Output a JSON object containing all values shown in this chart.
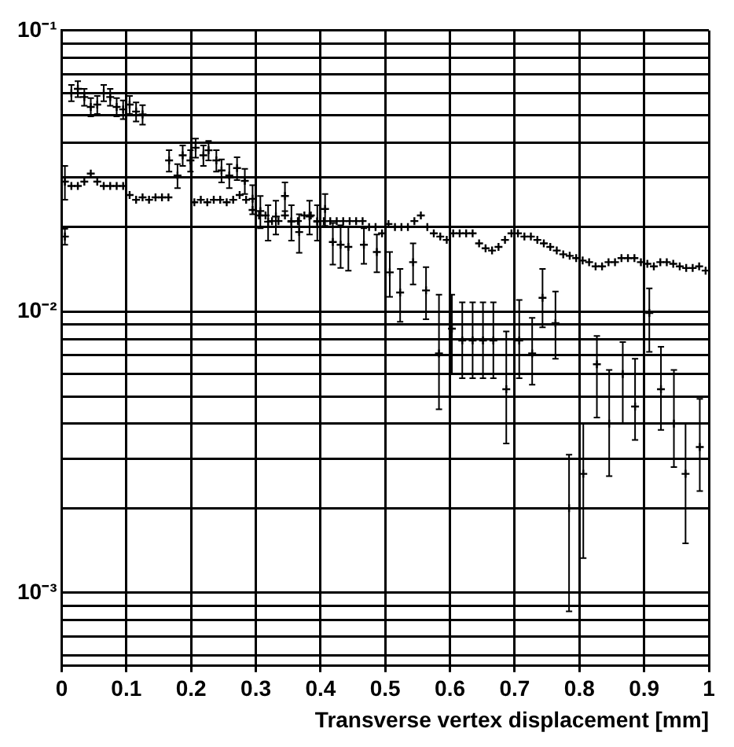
{
  "chart_data": {
    "type": "scatter",
    "xlabel": "Transverse vertex displacement [mm]",
    "xlim": [
      0,
      1
    ],
    "xticks": [
      0,
      0.1,
      0.2,
      0.3,
      0.4,
      0.5,
      0.6,
      0.7,
      0.8,
      0.9,
      1
    ],
    "ylim": [
      0.00055,
      0.1
    ],
    "log": "y",
    "yticks": [
      {
        "value": 0.0006,
        "label": null
      },
      {
        "value": 0.0007,
        "label": null
      },
      {
        "value": 0.0008,
        "label": null
      },
      {
        "value": 0.0009,
        "label": null
      },
      {
        "value": 0.001,
        "label": "10⁻³"
      },
      {
        "value": 0.002,
        "label": null
      },
      {
        "value": 0.003,
        "label": null
      },
      {
        "value": 0.004,
        "label": null
      },
      {
        "value": 0.005,
        "label": null
      },
      {
        "value": 0.006,
        "label": null
      },
      {
        "value": 0.007,
        "label": null
      },
      {
        "value": 0.008,
        "label": null
      },
      {
        "value": 0.009,
        "label": null
      },
      {
        "value": 0.01,
        "label": "10⁻²"
      },
      {
        "value": 0.02,
        "label": null
      },
      {
        "value": 0.03,
        "label": null
      },
      {
        "value": 0.04,
        "label": null
      },
      {
        "value": 0.05,
        "label": null
      },
      {
        "value": 0.06,
        "label": null
      },
      {
        "value": 0.07,
        "label": null
      },
      {
        "value": 0.08,
        "label": null
      },
      {
        "value": 0.09,
        "label": null
      },
      {
        "value": 0.1,
        "label": "10⁻¹"
      }
    ],
    "grid": true,
    "legend": false,
    "marker": "cross",
    "series": [
      {
        "color": "#000000",
        "x": [
          0.005,
          0.015,
          0.025,
          0.035,
          0.045,
          0.055,
          0.065,
          0.075,
          0.085,
          0.095,
          0.105,
          0.115,
          0.125,
          0.135,
          0.145,
          0.155,
          0.165,
          0.205,
          0.215,
          0.225,
          0.235,
          0.245,
          0.255,
          0.265,
          0.275,
          0.285,
          0.295,
          0.305,
          0.315,
          0.325,
          0.335,
          0.345,
          0.355,
          0.365,
          0.375,
          0.385,
          0.395,
          0.405,
          0.415,
          0.425,
          0.435,
          0.445,
          0.455,
          0.465,
          0.475,
          0.485,
          0.495,
          0.505,
          0.515,
          0.525,
          0.535,
          0.545,
          0.555,
          0.565,
          0.575,
          0.585,
          0.595,
          0.605,
          0.615,
          0.625,
          0.635,
          0.645,
          0.655,
          0.665,
          0.675,
          0.685,
          0.695,
          0.705,
          0.715,
          0.725,
          0.735,
          0.745,
          0.755,
          0.765,
          0.775,
          0.785,
          0.795,
          0.805,
          0.815,
          0.825,
          0.835,
          0.845,
          0.855,
          0.865,
          0.875,
          0.885,
          0.895,
          0.905,
          0.915,
          0.925,
          0.935,
          0.945,
          0.955,
          0.965,
          0.975,
          0.985,
          0.995
        ],
        "values": [
          0.029,
          0.028,
          0.028,
          0.029,
          0.031,
          0.029,
          0.028,
          0.028,
          0.028,
          0.028,
          0.026,
          0.025,
          0.0255,
          0.025,
          0.0255,
          0.0255,
          0.0255,
          0.0245,
          0.025,
          0.0245,
          0.025,
          0.025,
          0.0245,
          0.025,
          0.026,
          0.025,
          0.023,
          0.022,
          0.022,
          0.021,
          0.021,
          0.022,
          0.021,
          0.021,
          0.022,
          0.022,
          0.021,
          0.021,
          0.021,
          0.021,
          0.021,
          0.021,
          0.021,
          0.021,
          0.02,
          0.02,
          0.019,
          0.0205,
          0.02,
          0.02,
          0.02,
          0.021,
          0.022,
          0.02,
          0.019,
          0.0185,
          0.018,
          0.019,
          0.019,
          0.019,
          0.019,
          0.0175,
          0.0168,
          0.0165,
          0.017,
          0.018,
          0.019,
          0.019,
          0.0185,
          0.0185,
          0.018,
          0.0175,
          0.017,
          0.0165,
          0.016,
          0.0158,
          0.0155,
          0.0152,
          0.015,
          0.0145,
          0.0145,
          0.015,
          0.015,
          0.0155,
          0.0155,
          0.0155,
          0.015,
          0.0148,
          0.0145,
          0.015,
          0.015,
          0.0148,
          0.0145,
          0.0143,
          0.0143,
          0.0145,
          0.014
        ],
        "errors": [
          0.004,
          null,
          null,
          null,
          null,
          null,
          null,
          null,
          null,
          null,
          null,
          null,
          null,
          null,
          null,
          null,
          null,
          null,
          null,
          null,
          null,
          null,
          null,
          null,
          null,
          null,
          null,
          null,
          null,
          null,
          null,
          null,
          null,
          null,
          null,
          null,
          null,
          null,
          null,
          null,
          null,
          null,
          null,
          null,
          null,
          null,
          null,
          null,
          null,
          null,
          null,
          null,
          null,
          null,
          null,
          null,
          null,
          null,
          null,
          null,
          null,
          null,
          null,
          null,
          null,
          null,
          null,
          null,
          null,
          null,
          null,
          null,
          null,
          null,
          null,
          null,
          null,
          null,
          null,
          null,
          null,
          null,
          null,
          null,
          null,
          null,
          null,
          null,
          null,
          null,
          null,
          null,
          null,
          null,
          null,
          null,
          null
        ]
      },
      {
        "color": "#000000",
        "x": [
          0.005,
          0.015,
          0.025,
          0.035,
          0.045,
          0.055,
          0.065,
          0.075,
          0.085,
          0.095,
          0.105,
          0.115,
          0.125,
          0.166,
          0.179,
          0.187,
          0.199,
          0.207,
          0.219,
          0.227,
          0.239,
          0.247,
          0.259,
          0.271,
          0.283,
          0.295,
          0.307,
          0.319,
          0.331,
          0.345,
          0.355,
          0.367,
          0.383,
          0.395,
          0.407,
          0.419,
          0.431,
          0.443,
          0.467,
          0.487,
          0.507,
          0.523,
          0.543,
          0.563,
          0.583,
          0.603,
          0.619,
          0.635,
          0.651,
          0.667,
          0.687,
          0.707,
          0.727,
          0.743,
          0.763,
          0.784,
          0.806,
          0.827,
          0.846,
          0.867,
          0.886,
          0.908,
          0.926,
          0.946,
          0.964,
          0.986
        ],
        "values": [
          0.0185,
          0.06,
          0.062,
          0.058,
          0.0535,
          0.0545,
          0.06,
          0.058,
          0.0535,
          0.0524,
          0.0545,
          0.0515,
          0.0503,
          0.0345,
          0.0305,
          0.036,
          0.0345,
          0.0383,
          0.036,
          0.0375,
          0.0345,
          0.0318,
          0.0305,
          0.0324,
          0.0292,
          0.0252,
          0.0228,
          0.0209,
          0.0218,
          0.0258,
          0.0209,
          0.0192,
          0.0218,
          0.0209,
          0.0232,
          0.0177,
          0.0173,
          0.017,
          0.0173,
          0.0163,
          0.0138,
          0.0117,
          0.015,
          0.0119,
          0.0071,
          0.0087,
          0.0079,
          0.0079,
          0.0079,
          0.0079,
          0.0053,
          0.0079,
          0.0071,
          0.0112,
          0.0091,
          0.002,
          0.00265,
          0.0065,
          0.004,
          0.006,
          0.0046,
          0.0099,
          0.0053,
          0.004,
          0.00265,
          0.0033
        ],
        "errors": [
          0.0012,
          0.004,
          0.004,
          0.004,
          0.004,
          0.004,
          0.004,
          0.004,
          0.004,
          0.004,
          0.004,
          0.004,
          0.004,
          0.003,
          0.003,
          0.003,
          0.003,
          0.003,
          0.003,
          0.003,
          0.003,
          0.003,
          0.003,
          0.003,
          0.003,
          0.003,
          0.003,
          0.003,
          0.003,
          0.003,
          0.003,
          0.003,
          0.003,
          0.003,
          0.003,
          0.003,
          0.003,
          0.003,
          0.0025,
          0.0025,
          0.0025,
          0.0025,
          0.0025,
          0.0025,
          [
            0.0045,
            0.0115
          ],
          [
            0.006,
            0.0115
          ],
          [
            0.0058,
            0.0108
          ],
          [
            0.0058,
            0.0108
          ],
          [
            0.0058,
            0.0108
          ],
          [
            0.0058,
            0.0108
          ],
          [
            0.0034,
            0.0085
          ],
          [
            0.0058,
            0.011
          ],
          [
            0.0055,
            0.0095
          ],
          [
            0.0088,
            0.0142
          ],
          [
            0.0068,
            0.0118
          ],
          [
            0.00086,
            0.0031
          ],
          [
            0.00133,
            0.004
          ],
          [
            0.0042,
            0.0082
          ],
          [
            0.0026,
            0.0062
          ],
          [
            0.004,
            0.0078
          ],
          [
            0.0035,
            0.0068
          ],
          [
            0.0072,
            0.0121
          ],
          [
            0.0038,
            0.0075
          ],
          [
            0.0028,
            0.0062
          ],
          [
            0.0015,
            0.004
          ],
          [
            0.0023,
            0.0049
          ]
        ]
      }
    ]
  }
}
